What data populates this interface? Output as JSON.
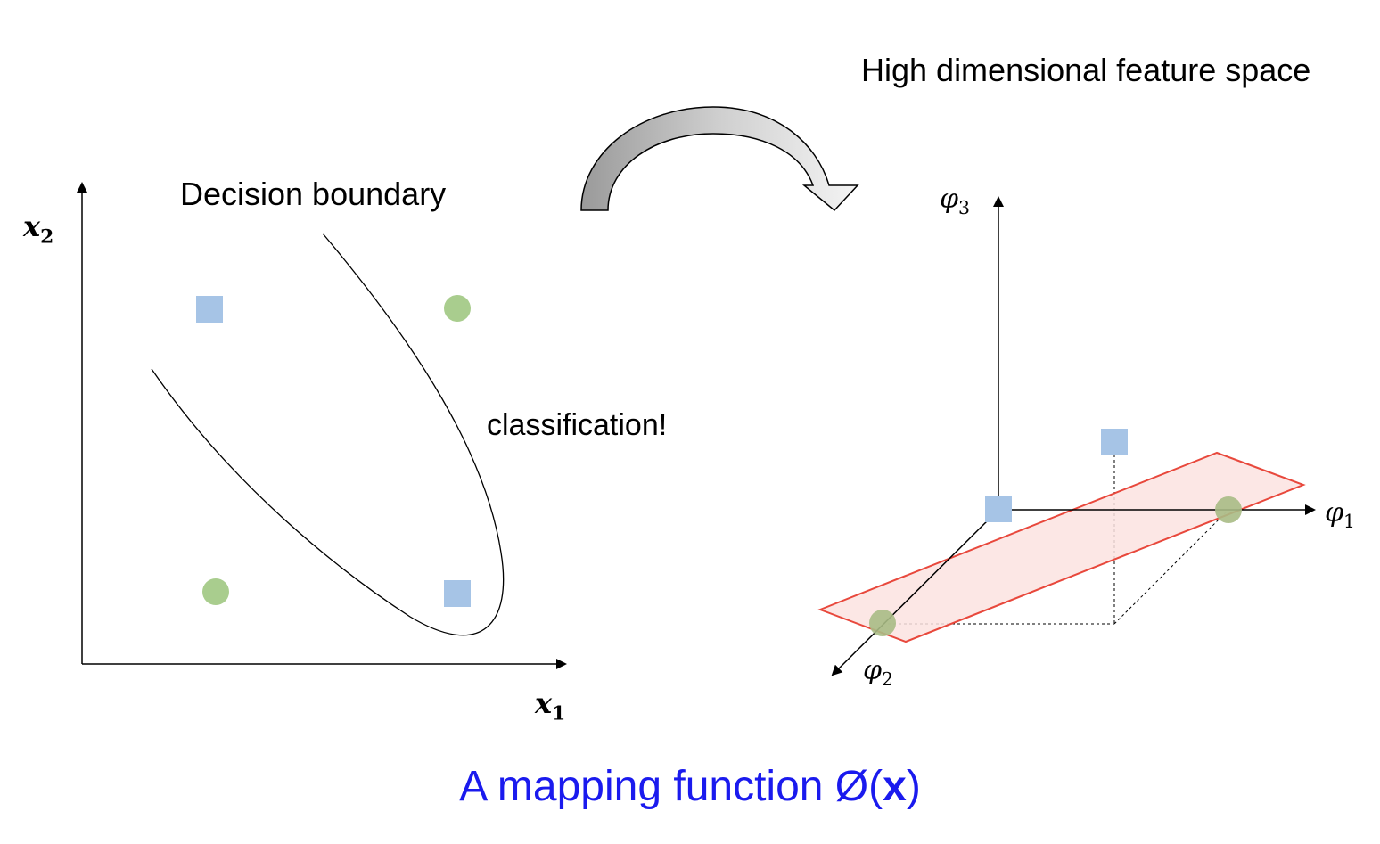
{
  "labels": {
    "feature_space": "High dimensional feature space",
    "decision_boundary": "Decision boundary",
    "classification": "classification!",
    "caption_text": "A mapping function Ø(",
    "caption_bold": "x",
    "caption_close": ")"
  },
  "axes": {
    "x1": {
      "base": "x",
      "sub": "1"
    },
    "x2": {
      "base": "x",
      "sub": "2"
    },
    "phi1": {
      "base": "φ",
      "sub": "1"
    },
    "phi2": {
      "base": "φ",
      "sub": "2"
    },
    "phi3": {
      "base": "φ",
      "sub": "3"
    }
  },
  "colors": {
    "square": "#a6c4e6",
    "circle": "#a9cd8e",
    "plane_fill": "#fbe3e0",
    "plane_stroke": "#e8483c",
    "caption": "#1a1aee",
    "arrow_gray": "#a8a8a8"
  }
}
